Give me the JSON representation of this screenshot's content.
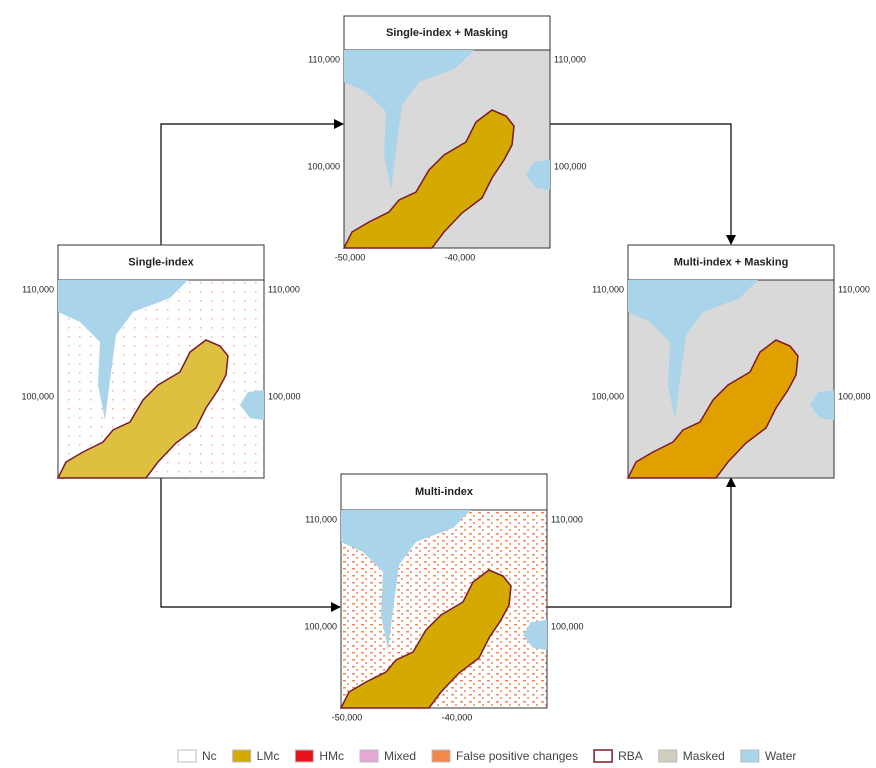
{
  "panels": [
    {
      "title": "Single-index + Masking",
      "y_labels_left": [
        "110,000",
        "100,000"
      ],
      "y_labels_right": [
        "110,000",
        "100,000"
      ],
      "x_labels": [
        "-50,000",
        "-40,000"
      ]
    },
    {
      "title": "Single-index",
      "y_labels_left": [
        "110,000",
        "100,000"
      ],
      "y_labels_right": [
        "110,000",
        "100,000"
      ]
    },
    {
      "title": "Multi-index + Masking",
      "y_labels_left": [
        "110,000",
        "100,000"
      ],
      "y_labels_right": [
        "110,000",
        "100,000"
      ]
    },
    {
      "title": "Multi-index",
      "y_labels_left": [
        "110,000",
        "100,000"
      ],
      "y_labels_right": [
        "110,000",
        "100,000"
      ],
      "x_labels": [
        "-50,000",
        "-40,000"
      ]
    }
  ],
  "legend": [
    {
      "label": "Nc",
      "color": "#ffffff"
    },
    {
      "label": "LMc",
      "color": "#d4a900"
    },
    {
      "label": "HMc",
      "color": "#e8141c"
    },
    {
      "label": "Mixed",
      "color": "#e7a8d8"
    },
    {
      "label": "False positive changes",
      "color": "#f4874b"
    },
    {
      "label": "RBA",
      "color": "#ffffff",
      "outline": "#7b1a2f"
    },
    {
      "label": "Masked",
      "color": "#d3cdbd"
    },
    {
      "label": "Water",
      "color": "#a9d4ea"
    }
  ]
}
